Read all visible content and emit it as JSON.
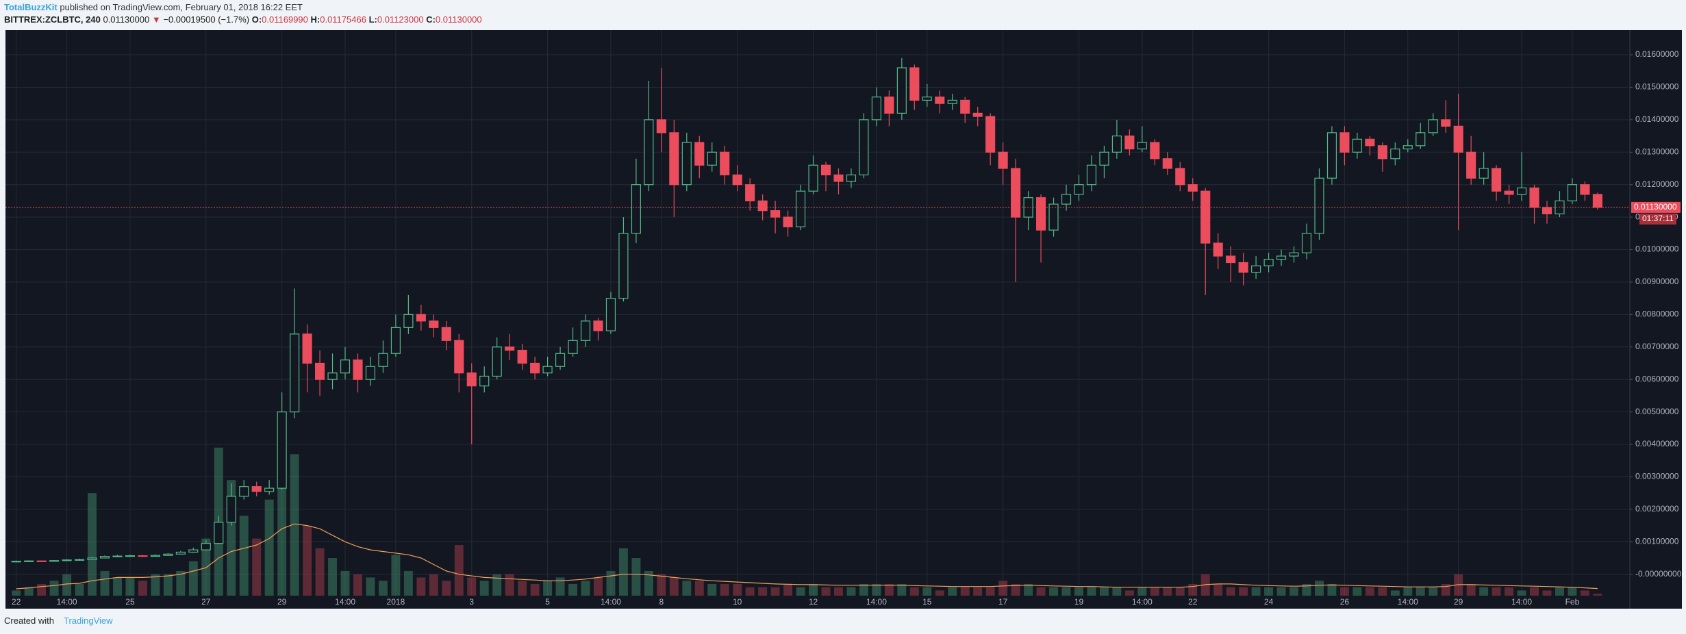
{
  "header": {
    "author": "TotalBuzzKit",
    "published": "published on TradingView.com, February 01, 2018 16:22 EET",
    "symbol": "BITTREX:ZCLBTC, 240",
    "price": "0.01130000",
    "arrow": "▼",
    "change": "−0.00019500 (−1.7%)",
    "o_label": "O:",
    "o": "0.01169990",
    "h_label": "H:",
    "h": "0.01175466",
    "l_label": "L:",
    "l": "0.01123000",
    "c_label": "C:",
    "c": "0.01130000"
  },
  "footer": {
    "created": "Created with",
    "brand": "TradingView"
  },
  "chart_data": {
    "type": "candlestick",
    "grid": true,
    "up_color": "#53b987",
    "down_color": "#eb4d5c",
    "ma_color": "#f0a058",
    "ylim": [
      -0.00066,
      0.01676
    ],
    "yticks": [
      {
        "value": 0,
        "label": "-0.00000000"
      },
      {
        "value": 0.001,
        "label": "0.00100000"
      },
      {
        "value": 0.002,
        "label": "0.00200000"
      },
      {
        "value": 0.003,
        "label": "0.00300000"
      },
      {
        "value": 0.004,
        "label": "0.00400000"
      },
      {
        "value": 0.005,
        "label": "0.00500000"
      },
      {
        "value": 0.006,
        "label": "0.00600000"
      },
      {
        "value": 0.007,
        "label": "0.00700000"
      },
      {
        "value": 0.008,
        "label": "0.00800000"
      },
      {
        "value": 0.009,
        "label": "0.00900000"
      },
      {
        "value": 0.01,
        "label": "0.01000000"
      },
      {
        "value": 0.011,
        "label": "0.01100000"
      },
      {
        "value": 0.012,
        "label": "0.01200000"
      },
      {
        "value": 0.013,
        "label": "0.01300000"
      },
      {
        "value": 0.014,
        "label": "0.01400000"
      },
      {
        "value": 0.015,
        "label": "0.01500000"
      },
      {
        "value": 0.016,
        "label": "0.01600000"
      }
    ],
    "last_price": {
      "value": 0.0113,
      "label": "0.01130000"
    },
    "countdown": "01:37:11",
    "categories": [
      "22",
      null,
      null,
      null,
      "14:00",
      null,
      null,
      null,
      null,
      "25",
      null,
      null,
      null,
      null,
      null,
      "27",
      null,
      null,
      null,
      null,
      null,
      "29",
      null,
      null,
      null,
      null,
      "14:00",
      null,
      null,
      null,
      "2018",
      null,
      null,
      null,
      null,
      null,
      "3",
      null,
      null,
      null,
      null,
      null,
      "5",
      null,
      null,
      null,
      null,
      "14:00",
      null,
      null,
      null,
      "8",
      null,
      null,
      null,
      null,
      null,
      "10",
      null,
      null,
      null,
      null,
      null,
      "12",
      null,
      null,
      null,
      null,
      "14:00",
      null,
      null,
      null,
      "15",
      null,
      null,
      null,
      null,
      null,
      "17",
      null,
      null,
      null,
      null,
      null,
      "19",
      null,
      null,
      null,
      null,
      "14:00",
      null,
      null,
      null,
      "22",
      null,
      null,
      null,
      null,
      null,
      "24",
      null,
      null,
      null,
      null,
      null,
      "26",
      null,
      null,
      null,
      null,
      "14:00",
      null,
      null,
      null,
      "29",
      null,
      null,
      null,
      null,
      "14:00",
      null,
      null,
      null,
      "Feb",
      null,
      null
    ],
    "open": [
      0.00039,
      0.0004,
      0.00041,
      0.0004,
      0.00042,
      0.00044,
      0.00045,
      0.0005,
      0.00055,
      0.00056,
      0.00057,
      0.00055,
      0.00058,
      0.00062,
      0.00068,
      0.00075,
      0.00095,
      0.0016,
      0.0024,
      0.0027,
      0.00255,
      0.00265,
      0.005,
      0.0074,
      0.0065,
      0.006,
      0.0062,
      0.0066,
      0.006,
      0.0064,
      0.0068,
      0.0076,
      0.008,
      0.0078,
      0.0076,
      0.0072,
      0.0062,
      0.0058,
      0.0061,
      0.007,
      0.0069,
      0.0065,
      0.0062,
      0.0064,
      0.0068,
      0.0072,
      0.0078,
      0.0075,
      0.0085,
      0.0105,
      0.012,
      0.014,
      0.0136,
      0.012,
      0.0133,
      0.0126,
      0.013,
      0.0123,
      0.012,
      0.0115,
      0.0112,
      0.011,
      0.0107,
      0.0118,
      0.0126,
      0.0123,
      0.0121,
      0.0123,
      0.014,
      0.0147,
      0.0142,
      0.0156,
      0.0146,
      0.0147,
      0.0145,
      0.0146,
      0.0142,
      0.0141,
      0.013,
      0.0125,
      0.011,
      0.0116,
      0.0106,
      0.0114,
      0.0117,
      0.012,
      0.0126,
      0.013,
      0.0135,
      0.0131,
      0.0133,
      0.0128,
      0.0125,
      0.012,
      0.0118,
      0.0102,
      0.0098,
      0.0096,
      0.0093,
      0.0095,
      0.0097,
      0.0098,
      0.0099,
      0.0105,
      0.0122,
      0.0136,
      0.013,
      0.0134,
      0.0132,
      0.0128,
      0.0131,
      0.0132,
      0.0136,
      0.014,
      0.0138,
      0.013,
      0.0122,
      0.0125,
      0.0118,
      0.0117,
      0.0119,
      0.0113,
      0.0111,
      0.0115,
      0.012,
      0.0116999
    ],
    "high": [
      0.00042,
      0.00043,
      0.00042,
      0.00044,
      0.00046,
      0.00048,
      0.00053,
      0.00058,
      0.0006,
      0.0006,
      0.00059,
      0.00061,
      0.00065,
      0.00072,
      0.00082,
      0.00105,
      0.0018,
      0.0028,
      0.0029,
      0.00285,
      0.0029,
      0.0056,
      0.0088,
      0.0077,
      0.0069,
      0.0068,
      0.007,
      0.0068,
      0.0067,
      0.0072,
      0.008,
      0.0086,
      0.0083,
      0.008,
      0.0078,
      0.0074,
      0.0065,
      0.0064,
      0.0073,
      0.0074,
      0.0071,
      0.0067,
      0.0067,
      0.007,
      0.0076,
      0.008,
      0.0079,
      0.0087,
      0.011,
      0.0128,
      0.0152,
      0.0156,
      0.014,
      0.0136,
      0.0135,
      0.0133,
      0.0132,
      0.0126,
      0.0122,
      0.0117,
      0.0115,
      0.0112,
      0.012,
      0.0129,
      0.0127,
      0.0125,
      0.0125,
      0.0142,
      0.015,
      0.0149,
      0.0159,
      0.0157,
      0.0151,
      0.0149,
      0.0148,
      0.0147,
      0.0144,
      0.0142,
      0.0133,
      0.0128,
      0.0118,
      0.0117,
      0.0116,
      0.012,
      0.0123,
      0.0129,
      0.0132,
      0.014,
      0.0137,
      0.0138,
      0.0134,
      0.013,
      0.0127,
      0.0122,
      0.0119,
      0.0105,
      0.0101,
      0.0099,
      0.0098,
      0.0099,
      0.01,
      0.0101,
      0.0108,
      0.0125,
      0.0138,
      0.0138,
      0.0136,
      0.0135,
      0.0133,
      0.0133,
      0.0134,
      0.0139,
      0.0142,
      0.0146,
      0.0148,
      0.0135,
      0.013,
      0.0126,
      0.012,
      0.013,
      0.012,
      0.0115,
      0.0118,
      0.0122,
      0.0121,
      0.01175466
    ],
    "low": [
      0.00038,
      0.00039,
      0.00039,
      0.0004,
      0.00041,
      0.00043,
      0.00044,
      0.00049,
      0.00053,
      0.00054,
      0.00053,
      0.00054,
      0.00057,
      0.00061,
      0.00066,
      0.00073,
      0.00092,
      0.0015,
      0.0023,
      0.0024,
      0.00245,
      0.0026,
      0.0048,
      0.0056,
      0.0055,
      0.0057,
      0.006,
      0.0056,
      0.0058,
      0.0062,
      0.0067,
      0.0074,
      0.0075,
      0.0073,
      0.0069,
      0.0056,
      0.004,
      0.0056,
      0.006,
      0.0066,
      0.0063,
      0.006,
      0.0061,
      0.0063,
      0.0067,
      0.007,
      0.0072,
      0.0074,
      0.0084,
      0.0102,
      0.0118,
      0.013,
      0.011,
      0.0118,
      0.0122,
      0.0124,
      0.012,
      0.0118,
      0.0112,
      0.0109,
      0.0105,
      0.0104,
      0.0106,
      0.0117,
      0.0118,
      0.0117,
      0.0119,
      0.0122,
      0.0138,
      0.0138,
      0.014,
      0.0143,
      0.0144,
      0.0142,
      0.0143,
      0.0139,
      0.0138,
      0.0126,
      0.012,
      0.009,
      0.0106,
      0.0096,
      0.0104,
      0.0112,
      0.0115,
      0.0118,
      0.0122,
      0.0128,
      0.0129,
      0.013,
      0.0126,
      0.0123,
      0.0118,
      0.0115,
      0.0086,
      0.0094,
      0.009,
      0.0089,
      0.0091,
      0.0093,
      0.0095,
      0.0096,
      0.0097,
      0.0103,
      0.012,
      0.0126,
      0.0128,
      0.0129,
      0.0124,
      0.0126,
      0.013,
      0.0131,
      0.0135,
      0.0136,
      0.0106,
      0.012,
      0.012,
      0.0115,
      0.0114,
      0.0115,
      0.0108,
      0.0108,
      0.011,
      0.0114,
      0.0115,
      0.01123
    ],
    "close": [
      0.0004,
      0.00041,
      0.0004,
      0.00042,
      0.00044,
      0.00045,
      0.0005,
      0.00055,
      0.00056,
      0.00057,
      0.00055,
      0.00058,
      0.00062,
      0.00068,
      0.00075,
      0.00095,
      0.0016,
      0.0024,
      0.0027,
      0.00255,
      0.00265,
      0.005,
      0.0074,
      0.0065,
      0.006,
      0.0062,
      0.0066,
      0.006,
      0.0064,
      0.0068,
      0.0076,
      0.008,
      0.0078,
      0.0076,
      0.0072,
      0.0062,
      0.0058,
      0.0061,
      0.007,
      0.0069,
      0.0065,
      0.0062,
      0.0064,
      0.0068,
      0.0072,
      0.0078,
      0.0075,
      0.0085,
      0.0105,
      0.012,
      0.014,
      0.0136,
      0.012,
      0.0133,
      0.0126,
      0.013,
      0.0123,
      0.012,
      0.0115,
      0.0112,
      0.011,
      0.0107,
      0.0118,
      0.0126,
      0.0123,
      0.0121,
      0.0123,
      0.014,
      0.0147,
      0.0142,
      0.0156,
      0.0146,
      0.0147,
      0.0145,
      0.0146,
      0.0142,
      0.0141,
      0.013,
      0.0125,
      0.011,
      0.0116,
      0.0106,
      0.0114,
      0.0117,
      0.012,
      0.0126,
      0.013,
      0.0135,
      0.0131,
      0.0133,
      0.0128,
      0.0125,
      0.012,
      0.0118,
      0.0102,
      0.0098,
      0.0096,
      0.0093,
      0.0095,
      0.0097,
      0.0098,
      0.0099,
      0.0105,
      0.0122,
      0.0136,
      0.013,
      0.0134,
      0.0132,
      0.0128,
      0.0131,
      0.0132,
      0.0136,
      0.014,
      0.0138,
      0.013,
      0.0122,
      0.0125,
      0.0118,
      0.0117,
      0.0119,
      0.0113,
      0.0111,
      0.0115,
      0.012,
      0.0117,
      0.0113
    ],
    "volume": [
      -0.0005,
      -0.0004,
      -0.0003,
      -0.0002,
      0,
      -0.0003,
      0.0025,
      0.0001,
      -0.0001,
      -0.0001,
      -0.0002,
      0,
      0,
      0.0001,
      0.0004,
      0.0011,
      0.0039,
      0.0029,
      0.0018,
      0.0011,
      0.0023,
      0.0039,
      0.0037,
      0.0015,
      0.0008,
      0.0005,
      0.0001,
      0,
      -0.0001,
      -0.0002,
      0.0006,
      0.0001,
      -0.0001,
      0,
      -0.0002,
      0.0009,
      -0.0001,
      -0.0002,
      0,
      0,
      -0.0002,
      -0.0003,
      -0.0002,
      -0.0001,
      -0.0003,
      -0.0002,
      -0.0001,
      0.0001,
      0.0008,
      0.0005,
      0.0001,
      0,
      -0.0001,
      -0.0002,
      -0.0002,
      -0.0003,
      -0.0003,
      -0.0003,
      -0.0004,
      -0.0004,
      -0.0004,
      -0.0003,
      -0.0004,
      -0.0003,
      -0.0004,
      -0.0004,
      -0.0004,
      -0.0003,
      -0.0003,
      -0.0003,
      -0.0003,
      -0.0004,
      -0.0004,
      -0.0005,
      -0.0004,
      -0.0004,
      -0.0004,
      -0.0004,
      -0.0002,
      -0.0003,
      -0.0003,
      -0.0004,
      -0.0004,
      -0.0004,
      -0.0004,
      -0.0004,
      -0.0004,
      -0.0004,
      -0.0005,
      -0.0004,
      -0.0004,
      -0.0004,
      -0.0004,
      -0.0003,
      0,
      -0.0003,
      -0.0004,
      -0.0004,
      -0.0004,
      -0.0004,
      -0.0004,
      -0.0004,
      -0.0003,
      -0.0002,
      -0.0003,
      -0.0004,
      -0.0004,
      -0.0004,
      -0.0004,
      -0.0005,
      -0.0004,
      -0.0004,
      -0.0004,
      -0.0003,
      0,
      -0.0003,
      -0.0004,
      -0.0004,
      -0.0004,
      -0.0005,
      -0.0004,
      -0.0005,
      -0.0004,
      -0.0004,
      -0.0005,
      -0.0006
    ],
    "volume_ma": [
      -0.00045,
      -0.00042,
      -0.00038,
      -0.00035,
      -0.0003,
      -0.00028,
      -0.0002,
      -0.00015,
      -0.0001,
      -0.0001,
      -0.0001,
      -8e-05,
      -5e-05,
      0,
      0.0001,
      0.0002,
      0.0005,
      0.0007,
      0.0008,
      0.0009,
      0.0011,
      0.0014,
      0.00155,
      0.0015,
      0.0014,
      0.0012,
      0.001,
      0.00085,
      0.00075,
      0.0007,
      0.00065,
      0.0006,
      0.0005,
      0.0003,
      0.0001,
      0,
      -5e-05,
      -0.0001,
      -0.00012,
      -0.00014,
      -0.00016,
      -0.00018,
      -0.0002,
      -0.0002,
      -0.00018,
      -0.00015,
      -0.0001,
      -5e-05,
      0,
      0,
      -2e-05,
      -6e-05,
      -0.0001,
      -0.00014,
      -0.00017,
      -0.0002,
      -0.00022,
      -0.00024,
      -0.00026,
      -0.00028,
      -0.0003,
      -0.00031,
      -0.00032,
      -0.00032,
      -0.00033,
      -0.00034,
      -0.00034,
      -0.00034,
      -0.00034,
      -0.00034,
      -0.00034,
      -0.00035,
      -0.00036,
      -0.00037,
      -0.00038,
      -0.00038,
      -0.00038,
      -0.00038,
      -0.00036,
      -0.00035,
      -0.00034,
      -0.00035,
      -0.00036,
      -0.00037,
      -0.00038,
      -0.00038,
      -0.00039,
      -0.0004,
      -0.0004,
      -0.0004,
      -0.0004,
      -0.0004,
      -0.0004,
      -0.00038,
      -0.00032,
      -0.0003,
      -0.0003,
      -0.00032,
      -0.00034,
      -0.00035,
      -0.00036,
      -0.00037,
      -0.00036,
      -0.00034,
      -0.00033,
      -0.00034,
      -0.00035,
      -0.00036,
      -0.00037,
      -0.00038,
      -0.00039,
      -0.00039,
      -0.00039,
      -0.00038,
      -0.00032,
      -0.00032,
      -0.00033,
      -0.00034,
      -0.00035,
      -0.00036,
      -0.00037,
      -0.00038,
      -0.00039,
      -0.0004,
      -0.00042,
      -0.00044
    ]
  }
}
